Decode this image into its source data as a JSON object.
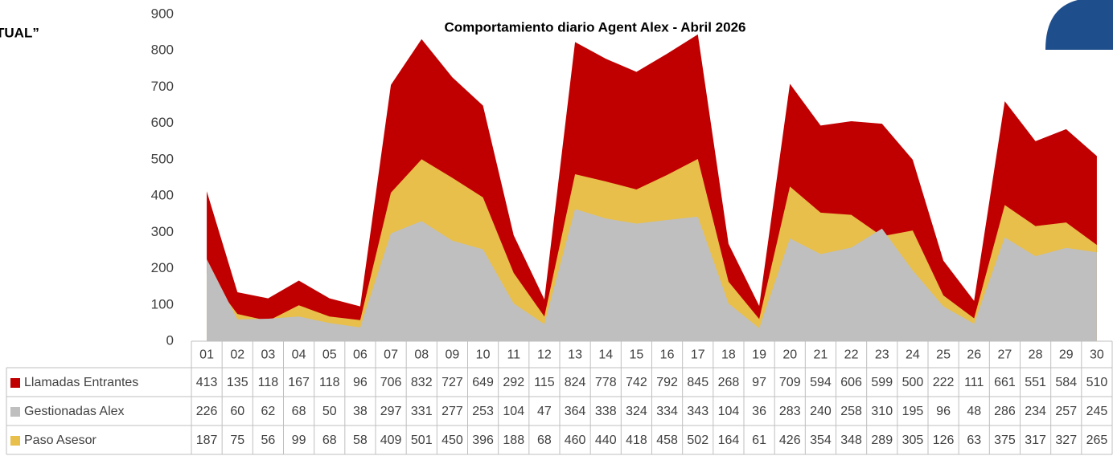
{
  "heading": "TUAL”",
  "chart_data": {
    "type": "area",
    "title": "Comportamiento diario Agent Alex - Abril 2026",
    "categories": [
      "01",
      "02",
      "03",
      "04",
      "05",
      "06",
      "07",
      "08",
      "09",
      "10",
      "11",
      "12",
      "13",
      "14",
      "15",
      "16",
      "17",
      "18",
      "19",
      "20",
      "21",
      "22",
      "23",
      "24",
      "25",
      "26",
      "27",
      "28",
      "29",
      "30"
    ],
    "series": [
      {
        "name": "Llamadas Entrantes",
        "color": "#c00000",
        "values": [
          413,
          135,
          118,
          167,
          118,
          96,
          706,
          832,
          727,
          649,
          292,
          115,
          824,
          778,
          742,
          792,
          845,
          268,
          97,
          709,
          594,
          606,
          599,
          500,
          222,
          111,
          661,
          551,
          584,
          510
        ]
      },
      {
        "name": "Gestionadas Alex",
        "color": "#bfbfbf",
        "values": [
          226,
          60,
          62,
          68,
          50,
          38,
          297,
          331,
          277,
          253,
          104,
          47,
          364,
          338,
          324,
          334,
          343,
          104,
          36,
          283,
          240,
          258,
          310,
          195,
          96,
          48,
          286,
          234,
          257,
          245
        ]
      },
      {
        "name": "Paso Asesor",
        "color": "#e8bf4a",
        "values": [
          187,
          75,
          56,
          99,
          68,
          58,
          409,
          501,
          450,
          396,
          188,
          68,
          460,
          440,
          418,
          458,
          502,
          164,
          61,
          426,
          354,
          348,
          289,
          305,
          126,
          63,
          375,
          317,
          327,
          265
        ]
      }
    ],
    "ylim": [
      0,
      900
    ],
    "yticks": [
      0,
      100,
      200,
      300,
      400,
      500,
      600,
      700,
      800,
      900
    ]
  }
}
